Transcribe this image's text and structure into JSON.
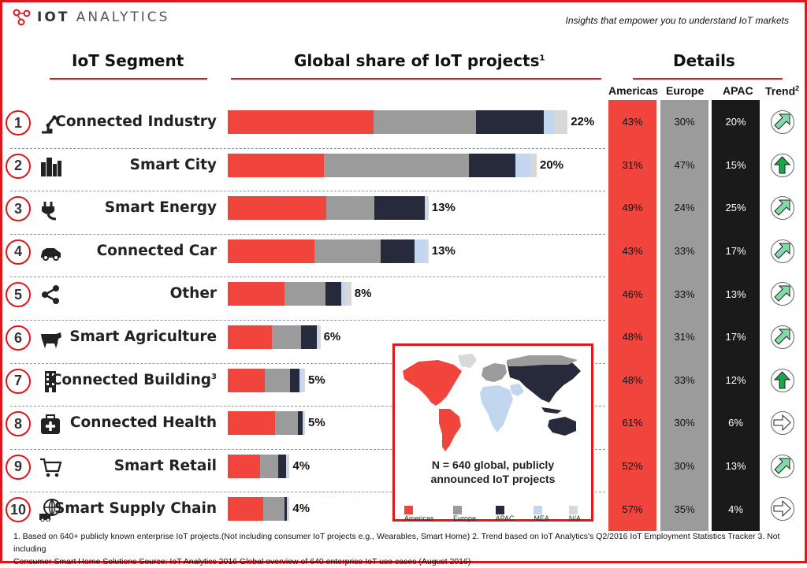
{
  "brand": {
    "name": "IOT ANALYTICS",
    "name_bold": "IOT",
    "name_rest": " ANALYTICS",
    "tagline": "Insights that empower you to understand IoT markets"
  },
  "headers": {
    "segment": "IoT Segment",
    "share": "Global share of IoT projects",
    "share_sup": "1",
    "details": "Details"
  },
  "columns": {
    "americas": "Americas",
    "europe": "Europe",
    "apac": "APAC",
    "trend": "Trend",
    "trend_sup": "2"
  },
  "colors": {
    "americas": "#f0443c",
    "europe": "#9b9b9b",
    "apac": "#262a3b",
    "mea": "#c3d6f0",
    "na": "#d8d8d8",
    "accent": "#e0161b",
    "trend_up_dark": "#19a74a",
    "trend_up_light": "#7fdca9"
  },
  "chart_data": {
    "type": "bar",
    "orientation": "horizontal-stacked",
    "title": "Global share of IoT projects",
    "series_names": [
      "Americas",
      "Europe",
      "APAC",
      "MEA",
      "N/A"
    ],
    "categories": [
      "Connected Industry",
      "Smart City",
      "Smart Energy",
      "Connected Car",
      "Other",
      "Smart Agriculture",
      "Connected Building",
      "Connected Health",
      "Smart Retail",
      "Smart Supply Chain"
    ],
    "share_labels": [
      "22%",
      "20%",
      "13%",
      "13%",
      "8%",
      "6%",
      "5%",
      "5%",
      "4%",
      "4%"
    ],
    "share_values": [
      22,
      20,
      13,
      13,
      8,
      6,
      5,
      5,
      4,
      4
    ],
    "americas": [
      43,
      31,
      49,
      43,
      46,
      48,
      48,
      61,
      52,
      57
    ],
    "europe": [
      30,
      47,
      24,
      33,
      33,
      31,
      33,
      30,
      30,
      35
    ],
    "apac": [
      20,
      15,
      25,
      17,
      13,
      17,
      12,
      6,
      13,
      4
    ],
    "mea": [
      3,
      5,
      1,
      6,
      3,
      2,
      3,
      2,
      3,
      2
    ],
    "na": [
      4,
      2,
      1,
      1,
      5,
      2,
      4,
      1,
      2,
      2
    ],
    "trend": [
      "up-right",
      "up",
      "up-right",
      "up-right",
      "up-right",
      "up-right",
      "up",
      "right",
      "up-right",
      "right"
    ]
  },
  "segments": [
    {
      "num": "1",
      "label": "Connected Industry",
      "icon": "robot-arm-icon",
      "americas": "43%",
      "europe": "30%",
      "apac": "20%",
      "share": "22%"
    },
    {
      "num": "2",
      "label": "Smart City",
      "icon": "city-icon",
      "americas": "31%",
      "europe": "47%",
      "apac": "15%",
      "share": "20%"
    },
    {
      "num": "3",
      "label": "Smart Energy",
      "icon": "plug-icon",
      "americas": "49%",
      "europe": "24%",
      "apac": "25%",
      "share": "13%"
    },
    {
      "num": "4",
      "label": "Connected Car",
      "icon": "car-icon",
      "americas": "43%",
      "europe": "33%",
      "apac": "17%",
      "share": "13%"
    },
    {
      "num": "5",
      "label": "Other",
      "icon": "share-icon",
      "americas": "46%",
      "europe": "33%",
      "apac": "13%",
      "share": "8%"
    },
    {
      "num": "6",
      "label": "Smart Agriculture",
      "icon": "cow-icon",
      "americas": "48%",
      "europe": "31%",
      "apac": "17%",
      "share": "6%"
    },
    {
      "num": "7",
      "label": "Connected Building",
      "sup": "3",
      "icon": "building-icon",
      "americas": "48%",
      "europe": "33%",
      "apac": "12%",
      "share": "5%"
    },
    {
      "num": "8",
      "label": "Connected Health",
      "icon": "medical-kit-icon",
      "americas": "61%",
      "europe": "30%",
      "apac": "6%",
      "share": "5%"
    },
    {
      "num": "9",
      "label": "Smart Retail",
      "icon": "shopping-cart-icon",
      "americas": "52%",
      "europe": "30%",
      "apac": "13%",
      "share": "4%"
    },
    {
      "num": "10",
      "label": "Smart Supply Chain",
      "icon": "globe-truck-icon",
      "americas": "57%",
      "europe": "35%",
      "apac": "4%",
      "share": "4%"
    }
  ],
  "map": {
    "caption_line1": "N = 640 global, publicly",
    "caption_line2": "announced IoT projects",
    "legend": [
      "Americas",
      "Europe",
      "APAC",
      "MEA",
      "N/A"
    ]
  },
  "footnote": {
    "line1": "1. Based on 640+ publicly known enterprise IoT projects.(Not including consumer IoT projects e.g.,  Wearables, Smart Home) 2. Trend based on IoT Analytics's Q2/2016 IoT Employment Statistics Tracker  3. Not including",
    "line2": "Consumer Smart Home Solutions    Source: IoT Analytics 2016 Global overview of 640 enterprise IoT use cases (August 2016)"
  }
}
